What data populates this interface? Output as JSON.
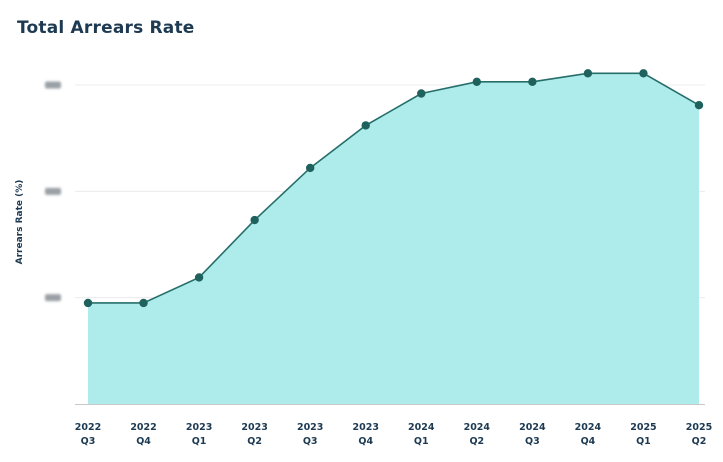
{
  "chart_data": {
    "type": "area",
    "title": "Total Arrears Rate",
    "xlabel": "",
    "ylabel": "Arrears Rate (%)",
    "categories": [
      [
        "2022",
        "Q3"
      ],
      [
        "2022",
        "Q4"
      ],
      [
        "2023",
        "Q1"
      ],
      [
        "2023",
        "Q2"
      ],
      [
        "2023",
        "Q3"
      ],
      [
        "2023",
        "Q4"
      ],
      [
        "2024",
        "Q1"
      ],
      [
        "2024",
        "Q2"
      ],
      [
        "2024",
        "Q3"
      ],
      [
        "2024",
        "Q4"
      ],
      [
        "2025",
        "Q1"
      ],
      [
        "2025",
        "Q2"
      ]
    ],
    "values": [
      0.95,
      0.95,
      1.19,
      1.73,
      2.22,
      2.62,
      2.92,
      3.03,
      3.03,
      3.11,
      3.11,
      2.81
    ],
    "ylim": [
      0,
      3.0
    ],
    "yticks": [
      1,
      2,
      3
    ],
    "ytick_labels_obscured": true,
    "grid": true,
    "legend": "none",
    "colors": {
      "fill": "#aeeceb",
      "line": "#266e6a",
      "marker": "#1f615d",
      "text": "#1d3a52",
      "grid": "#ececec",
      "axis": "#c8c8c8"
    }
  }
}
